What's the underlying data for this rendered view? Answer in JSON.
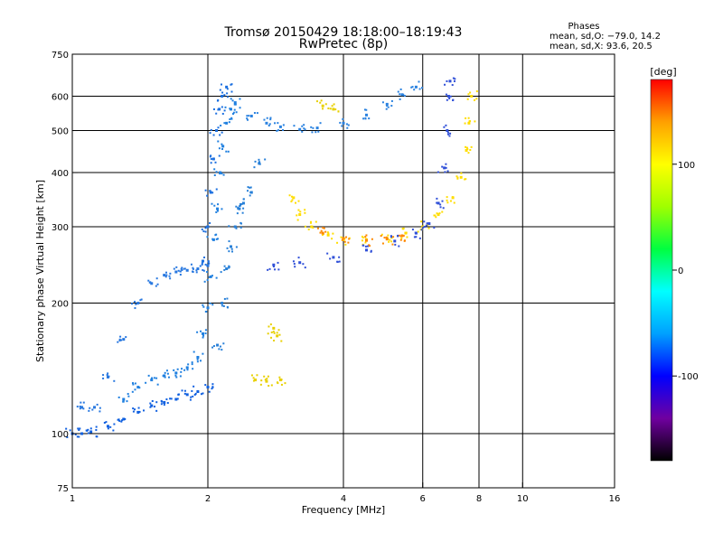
{
  "chart_data": {
    "type": "scatter",
    "title": "Tromsø 20150429  18:18:00–18:19:43",
    "subtitle": "RwPretec (8p)",
    "xlabel": "Frequency [MHz]",
    "ylabel": "Stationary phase Virtual Height [km]",
    "x_scale": "log",
    "y_scale": "log",
    "xlim": [
      1,
      16
    ],
    "ylim": [
      75,
      750
    ],
    "x_ticks": [
      1,
      2,
      4,
      6,
      8,
      10,
      16
    ],
    "y_ticks": [
      75,
      100,
      200,
      300,
      400,
      500,
      600,
      750
    ],
    "x_gridlines": [
      2,
      4,
      6,
      8,
      10
    ],
    "y_gridlines": [
      100,
      200,
      300,
      400,
      500,
      600
    ],
    "grid": true,
    "stats": {
      "heading": "Phases",
      "line_o": "mean, sd,O: −79.0, 14.2",
      "line_x": "mean, sd,X:  93.6, 20.5"
    },
    "colorbar": {
      "label": "[deg]",
      "range": [
        -180,
        180
      ],
      "ticks": [
        100,
        0,
        -100
      ],
      "colors": [
        "#000000",
        "#7000a0",
        "#0000ff",
        "#00a0ff",
        "#00ffff",
        "#00ff40",
        "#a0ff00",
        "#ffff00",
        "#ffa000",
        "#ff0000"
      ]
    },
    "traces": [
      {
        "color": "#1060e0",
        "points": [
          [
            1.0,
            100
          ],
          [
            1.05,
            100
          ],
          [
            1.1,
            101
          ],
          [
            1.2,
            104
          ],
          [
            1.3,
            108
          ],
          [
            1.4,
            112
          ],
          [
            1.5,
            116
          ],
          [
            1.6,
            118
          ],
          [
            1.7,
            120
          ],
          [
            1.8,
            123
          ],
          [
            1.9,
            125
          ],
          [
            2.0,
            128
          ]
        ]
      },
      {
        "color": "#2080e0",
        "points": [
          [
            1.3,
            120
          ],
          [
            1.4,
            128
          ],
          [
            1.5,
            133
          ],
          [
            1.6,
            136
          ],
          [
            1.7,
            138
          ],
          [
            1.8,
            142
          ],
          [
            1.9,
            150
          ],
          [
            1.95,
            170
          ],
          [
            2.0,
            195
          ],
          [
            2.03,
            230
          ],
          [
            2.06,
            280
          ],
          [
            2.1,
            330
          ],
          [
            2.13,
            400
          ],
          [
            2.16,
            460
          ],
          [
            2.2,
            520
          ],
          [
            2.25,
            560
          ],
          [
            2.3,
            580
          ]
        ]
      },
      {
        "color": "#2878e0",
        "points": [
          [
            1.05,
            115
          ],
          [
            1.12,
            115
          ],
          [
            1.2,
            135
          ],
          [
            1.3,
            165
          ],
          [
            1.4,
            200
          ],
          [
            1.5,
            222
          ],
          [
            1.6,
            232
          ],
          [
            1.7,
            236
          ],
          [
            1.8,
            238
          ],
          [
            1.9,
            240
          ],
          [
            2.0,
            244
          ]
        ]
      },
      {
        "color": "#1c70e0",
        "points": [
          [
            1.95,
            250
          ],
          [
            2.0,
            300
          ],
          [
            2.03,
            360
          ],
          [
            2.06,
            430
          ],
          [
            2.09,
            500
          ],
          [
            2.12,
            560
          ],
          [
            2.15,
            600
          ],
          [
            2.2,
            630
          ]
        ]
      },
      {
        "color": "#2880d8",
        "points": [
          [
            2.1,
            160
          ],
          [
            2.15,
            200
          ],
          [
            2.2,
            240
          ],
          [
            2.25,
            270
          ],
          [
            2.3,
            300
          ],
          [
            2.35,
            330
          ],
          [
            2.4,
            340
          ],
          [
            2.5,
            360
          ],
          [
            2.6,
            420
          ]
        ]
      },
      {
        "color": "#2a82e0",
        "points": [
          [
            2.5,
            540
          ],
          [
            2.7,
            520
          ],
          [
            2.9,
            510
          ],
          [
            3.2,
            503
          ],
          [
            3.5,
            507
          ],
          [
            4.0,
            520
          ],
          [
            4.5,
            543
          ],
          [
            5.0,
            575
          ],
          [
            5.4,
            605
          ],
          [
            5.8,
            630
          ]
        ]
      },
      {
        "color": "#ffdd00",
        "points": [
          [
            3.1,
            350
          ],
          [
            3.2,
            320
          ],
          [
            3.4,
            300
          ],
          [
            3.7,
            287
          ],
          [
            4.0,
            280
          ],
          [
            4.5,
            280
          ],
          [
            5.0,
            282
          ],
          [
            5.5,
            290
          ],
          [
            6.0,
            300
          ],
          [
            6.5,
            320
          ],
          [
            7.0,
            350
          ],
          [
            7.3,
            390
          ],
          [
            7.5,
            450
          ],
          [
            7.6,
            520
          ],
          [
            7.7,
            600
          ]
        ]
      },
      {
        "color": "#ff8800",
        "points": [
          [
            3.6,
            290
          ],
          [
            4.0,
            282
          ],
          [
            4.5,
            279
          ],
          [
            5.0,
            281
          ],
          [
            5.4,
            286
          ]
        ]
      },
      {
        "color": "#3050d8",
        "points": [
          [
            2.8,
            245
          ],
          [
            3.2,
            248
          ],
          [
            3.8,
            255
          ],
          [
            4.5,
            265
          ],
          [
            5.2,
            278
          ],
          [
            5.8,
            290
          ],
          [
            6.2,
            305
          ],
          [
            6.5,
            340
          ],
          [
            6.7,
            410
          ],
          [
            6.8,
            500
          ],
          [
            6.85,
            600
          ],
          [
            6.9,
            650
          ]
        ]
      },
      {
        "color": "#e8d000",
        "points": [
          [
            2.55,
            133
          ],
          [
            2.7,
            132
          ],
          [
            2.9,
            133
          ]
        ]
      },
      {
        "color": "#e8d000",
        "points": [
          [
            2.8,
            175
          ],
          [
            2.85,
            168
          ]
        ]
      },
      {
        "color": "#e8d000",
        "points": [
          [
            3.6,
            570
          ],
          [
            3.8,
            560
          ]
        ]
      }
    ]
  }
}
